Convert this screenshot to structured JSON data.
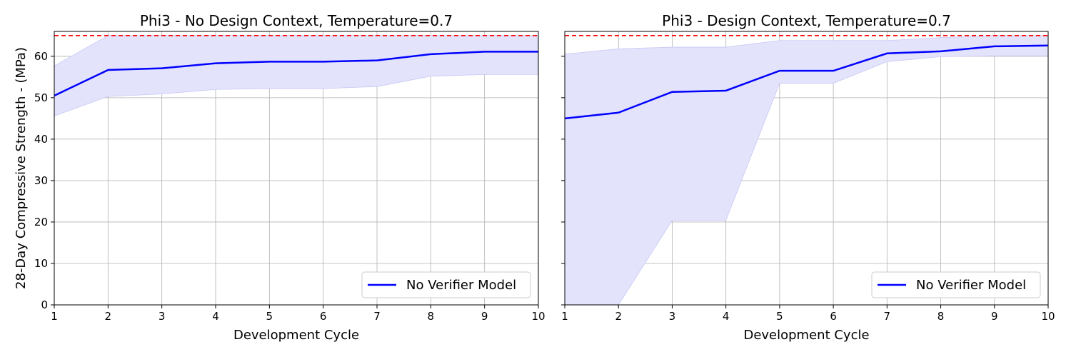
{
  "chart_data": [
    {
      "type": "line",
      "title": "Phi3 -  No Design Context, Temperature=0.7",
      "xlabel": "Development Cycle",
      "ylabel": "28-Day Compressive Strength - (MPa)",
      "xlim": [
        1,
        10
      ],
      "ylim": [
        0,
        66
      ],
      "x": [
        1,
        2,
        3,
        4,
        5,
        6,
        7,
        8,
        9,
        10
      ],
      "xticks": [
        "1",
        "2",
        "3",
        "4",
        "5",
        "6",
        "7",
        "8",
        "9",
        "10"
      ],
      "yticks": [
        "0",
        "10",
        "20",
        "30",
        "40",
        "50",
        "60"
      ],
      "grid": true,
      "legend_position": "lower-right",
      "series": [
        {
          "name": "No Verifier Model",
          "color": "#0000ff",
          "values": [
            50.5,
            56.7,
            57.1,
            58.3,
            58.7,
            58.7,
            59.0,
            60.5,
            61.1,
            61.1
          ],
          "band_lower": [
            45.6,
            50.3,
            50.9,
            52.0,
            52.2,
            52.2,
            52.7,
            55.2,
            55.6,
            55.6
          ],
          "band_upper": [
            57.7,
            65.0,
            65.0,
            65.0,
            65.0,
            65.0,
            65.0,
            65.0,
            65.0,
            65.0
          ],
          "band_color": "#e3e3fc"
        }
      ],
      "reference_line": {
        "y": 65,
        "color": "#ff0000",
        "style": "dashed"
      }
    },
    {
      "type": "line",
      "title": "Phi3 -  Design Context, Temperature=0.7",
      "xlabel": "Development Cycle",
      "ylabel": "",
      "xlim": [
        1,
        10
      ],
      "ylim": [
        0,
        66
      ],
      "x": [
        1,
        2,
        3,
        4,
        5,
        6,
        7,
        8,
        9,
        10
      ],
      "xticks": [
        "1",
        "2",
        "3",
        "4",
        "5",
        "6",
        "7",
        "8",
        "9",
        "10"
      ],
      "yticks": [],
      "grid": true,
      "legend_position": "lower-right",
      "series": [
        {
          "name": "No Verifier Model",
          "color": "#0000ff",
          "values": [
            45.0,
            46.4,
            51.4,
            51.7,
            56.5,
            56.5,
            60.7,
            61.2,
            62.4,
            62.6
          ],
          "band_lower": [
            0.0,
            0.0,
            20.4,
            20.4,
            53.5,
            53.5,
            58.7,
            59.9,
            60.1,
            60.1
          ],
          "band_upper": [
            60.5,
            61.8,
            62.2,
            62.2,
            63.8,
            63.8,
            63.8,
            64.5,
            65.0,
            65.0
          ],
          "band_color": "#e3e3fc"
        }
      ],
      "reference_line": {
        "y": 65,
        "color": "#ff0000",
        "style": "dashed"
      }
    }
  ]
}
